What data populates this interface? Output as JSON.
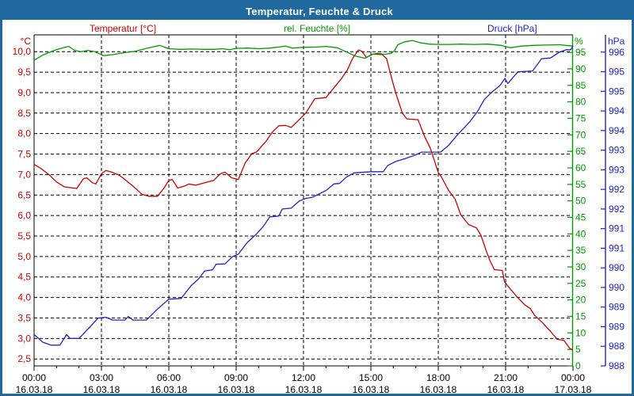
{
  "window": {
    "title": "Temperatur, Feuchte & Druck"
  },
  "legend": {
    "temperature": "Temperatur [°C]",
    "humidity": "rel. Feuchte [%]",
    "pressure": "Druck [hPa]"
  },
  "axis_units": {
    "temperature": "°C",
    "humidity": "%",
    "pressure": "hPa"
  },
  "colors": {
    "frame_and_titlebar": "#1F699F",
    "title_text": "#FFFFFF",
    "temperature": "#CC0000",
    "humidity": "#009900",
    "pressure": "#2222CC",
    "grid": "#000000",
    "x_labels": "#000000"
  },
  "chart_data": {
    "type": "line",
    "title": "Temperatur, Feuchte & Druck",
    "grid": "dashed black, horizontal at 0.5 °C steps, vertical at 3 h steps",
    "legend_position": "top row, one colored label per series",
    "x_axis": {
      "range_hours": [
        0,
        24
      ],
      "minor_tick_step_hours": 1,
      "ticks": [
        {
          "h": 0,
          "time": "00:00",
          "date": "16.03.18"
        },
        {
          "h": 3,
          "time": "03:00",
          "date": "16.03.18"
        },
        {
          "h": 6,
          "time": "06:00",
          "date": "16.03.18"
        },
        {
          "h": 9,
          "time": "09:00",
          "date": "16.03.18"
        },
        {
          "h": 12,
          "time": "12:00",
          "date": "16.03.18"
        },
        {
          "h": 15,
          "time": "15:00",
          "date": "16.03.18"
        },
        {
          "h": 18,
          "time": "18:00",
          "date": "16.03.18"
        },
        {
          "h": 21,
          "time": "21:00",
          "date": "16.03.18"
        },
        {
          "h": 24,
          "time": "00:00",
          "date": "17.03.18"
        }
      ]
    },
    "axes": {
      "temperature": {
        "unit": "°C",
        "side": "left",
        "color": "#CC0000",
        "range": [
          2.33,
          10.41
        ],
        "tick_values": [
          10.0,
          9.5,
          9.0,
          8.5,
          8.0,
          7.5,
          7.0,
          6.5,
          6.0,
          5.5,
          5.0,
          4.5,
          4.0,
          3.5,
          3.0,
          2.5
        ],
        "tick_labels": [
          "10,0",
          "9,5",
          "9,0",
          "8,5",
          "8,0",
          "7,5",
          "7,0",
          "6,5",
          "6,0",
          "5,5",
          "5,0",
          "4,5",
          "4,0",
          "3,5",
          "3,0",
          "2,5"
        ]
      },
      "humidity": {
        "unit": "%",
        "side": "right-inner",
        "color": "#009900",
        "range": [
          0,
          100.3
        ],
        "tick_values": [
          95,
          90,
          85,
          80,
          75,
          70,
          65,
          60,
          55,
          50,
          45,
          40,
          35,
          30,
          25,
          20,
          15,
          10,
          5,
          0
        ],
        "tick_labels": [
          "95",
          "90",
          "85",
          "80",
          "75",
          "70",
          "65",
          "60",
          "55",
          "50",
          "45",
          "40",
          "35",
          "30",
          "25",
          "20",
          "15",
          "10",
          "5",
          "0"
        ]
      },
      "pressure": {
        "unit": "hPa",
        "side": "right-outer",
        "color": "#2222CC",
        "range": [
          988,
          996.44
        ],
        "tick_values": [
          996,
          995.5,
          995,
          994.5,
          994,
          993.5,
          993,
          992.5,
          992,
          991.5,
          991,
          990.5,
          990,
          989.5,
          989,
          988.5,
          988
        ],
        "tick_labels": [
          "996",
          "995",
          "995",
          "994",
          "994",
          "993",
          "993",
          "992",
          "992",
          "991",
          "991",
          "990",
          "990",
          "989",
          "989",
          "988",
          "988"
        ]
      }
    },
    "series": [
      {
        "name": "Temperatur",
        "axis": "temperature",
        "color": "#CC0000",
        "points": [
          [
            0,
            7.25
          ],
          [
            0.3,
            7.15
          ],
          [
            0.7,
            6.98
          ],
          [
            1.0,
            6.82
          ],
          [
            1.35,
            6.7
          ],
          [
            1.9,
            6.66
          ],
          [
            2.2,
            6.9
          ],
          [
            2.35,
            6.92
          ],
          [
            2.6,
            6.8
          ],
          [
            2.75,
            6.77
          ],
          [
            3.0,
            7.02
          ],
          [
            3.2,
            7.1
          ],
          [
            3.5,
            7.05
          ],
          [
            3.8,
            6.98
          ],
          [
            4.0,
            6.9
          ],
          [
            4.4,
            6.72
          ],
          [
            4.8,
            6.52
          ],
          [
            5.1,
            6.47
          ],
          [
            5.5,
            6.47
          ],
          [
            5.8,
            6.68
          ],
          [
            6.0,
            6.86
          ],
          [
            6.15,
            6.88
          ],
          [
            6.4,
            6.67
          ],
          [
            6.7,
            6.72
          ],
          [
            6.9,
            6.77
          ],
          [
            7.2,
            6.74
          ],
          [
            7.6,
            6.8
          ],
          [
            8.0,
            6.86
          ],
          [
            8.3,
            7.02
          ],
          [
            8.5,
            7.06
          ],
          [
            8.8,
            6.92
          ],
          [
            9.1,
            6.88
          ],
          [
            9.4,
            7.28
          ],
          [
            9.7,
            7.51
          ],
          [
            9.9,
            7.55
          ],
          [
            10.05,
            7.64
          ],
          [
            10.35,
            7.83
          ],
          [
            10.6,
            8.03
          ],
          [
            10.9,
            8.19
          ],
          [
            11.2,
            8.2
          ],
          [
            11.45,
            8.15
          ],
          [
            11.7,
            8.28
          ],
          [
            12.1,
            8.5
          ],
          [
            12.5,
            8.85
          ],
          [
            13.0,
            8.88
          ],
          [
            13.4,
            9.15
          ],
          [
            13.7,
            9.35
          ],
          [
            13.95,
            9.55
          ],
          [
            14.2,
            9.85
          ],
          [
            14.45,
            10.04
          ],
          [
            14.6,
            10.01
          ],
          [
            14.8,
            9.86
          ],
          [
            15.1,
            9.94
          ],
          [
            15.5,
            9.93
          ],
          [
            15.7,
            9.83
          ],
          [
            15.95,
            9.3
          ],
          [
            16.1,
            9.0
          ],
          [
            16.4,
            8.5
          ],
          [
            16.6,
            8.36
          ],
          [
            17.1,
            8.34
          ],
          [
            17.4,
            7.92
          ],
          [
            17.65,
            7.64
          ],
          [
            18.0,
            7.05
          ],
          [
            18.15,
            6.93
          ],
          [
            18.45,
            6.62
          ],
          [
            18.75,
            6.4
          ],
          [
            19.0,
            6.02
          ],
          [
            19.35,
            5.78
          ],
          [
            19.7,
            5.7
          ],
          [
            19.9,
            5.52
          ],
          [
            20.15,
            5.12
          ],
          [
            20.3,
            4.9
          ],
          [
            20.5,
            4.68
          ],
          [
            20.85,
            4.66
          ],
          [
            20.95,
            4.38
          ],
          [
            21.2,
            4.21
          ],
          [
            21.5,
            4.02
          ],
          [
            21.85,
            3.82
          ],
          [
            22.1,
            3.73
          ],
          [
            22.3,
            3.56
          ],
          [
            22.65,
            3.38
          ],
          [
            23.0,
            3.17
          ],
          [
            23.3,
            2.98
          ],
          [
            23.6,
            2.95
          ],
          [
            23.85,
            2.76
          ],
          [
            24,
            2.72
          ]
        ]
      },
      {
        "name": "rel. Feuchte",
        "axis": "humidity",
        "color": "#009900",
        "points": [
          [
            0,
            92.6
          ],
          [
            0.4,
            94.2
          ],
          [
            0.9,
            95.6
          ],
          [
            1.3,
            96.4
          ],
          [
            1.55,
            96.8
          ],
          [
            1.8,
            95.6
          ],
          [
            2.1,
            95.2
          ],
          [
            2.4,
            95.6
          ],
          [
            2.7,
            95.2
          ],
          [
            3.1,
            94.0
          ],
          [
            3.5,
            94.3
          ],
          [
            4.0,
            94.9
          ],
          [
            4.5,
            95.3
          ],
          [
            5.0,
            96.2
          ],
          [
            5.6,
            97.1
          ],
          [
            6.0,
            96.1
          ],
          [
            6.5,
            95.9
          ],
          [
            7.0,
            96.0
          ],
          [
            7.5,
            95.9
          ],
          [
            8.0,
            95.9
          ],
          [
            8.4,
            96.1
          ],
          [
            8.7,
            95.8
          ],
          [
            9.0,
            96.2
          ],
          [
            9.5,
            96.3
          ],
          [
            10.0,
            96.1
          ],
          [
            10.5,
            96.3
          ],
          [
            11.0,
            96.7
          ],
          [
            11.2,
            96.9
          ],
          [
            11.5,
            96.3
          ],
          [
            12.0,
            96.5
          ],
          [
            12.6,
            96.6
          ],
          [
            13.0,
            96.8
          ],
          [
            13.5,
            96.4
          ],
          [
            13.9,
            95.2
          ],
          [
            14.3,
            93.9
          ],
          [
            14.75,
            93.2
          ],
          [
            15.05,
            94.4
          ],
          [
            15.3,
            94.7
          ],
          [
            15.6,
            94.4
          ],
          [
            15.9,
            94.7
          ],
          [
            16.05,
            95.5
          ],
          [
            16.2,
            97.3
          ],
          [
            16.5,
            98.2
          ],
          [
            16.85,
            98.6
          ],
          [
            17.2,
            97.9
          ],
          [
            17.6,
            97.5
          ],
          [
            18.0,
            97.4
          ],
          [
            18.5,
            97.4
          ],
          [
            19.0,
            97.5
          ],
          [
            19.6,
            97.4
          ],
          [
            20.2,
            97.5
          ],
          [
            20.8,
            97.1
          ],
          [
            21.2,
            96.4
          ],
          [
            21.7,
            96.9
          ],
          [
            22.2,
            97.1
          ],
          [
            22.8,
            97.2
          ],
          [
            23.4,
            97.3
          ],
          [
            24,
            96.9
          ]
        ]
      },
      {
        "name": "Druck",
        "axis": "pressure",
        "color": "#2222CC",
        "points": [
          [
            0,
            988.8
          ],
          [
            0.4,
            988.6
          ],
          [
            0.75,
            988.53
          ],
          [
            1.15,
            988.53
          ],
          [
            1.45,
            988.8
          ],
          [
            1.6,
            988.7
          ],
          [
            2.0,
            988.7
          ],
          [
            2.5,
            989.0
          ],
          [
            2.85,
            989.22
          ],
          [
            3.2,
            989.24
          ],
          [
            3.5,
            989.17
          ],
          [
            4.05,
            989.17
          ],
          [
            4.2,
            989.26
          ],
          [
            4.4,
            989.17
          ],
          [
            5.0,
            989.17
          ],
          [
            5.5,
            989.45
          ],
          [
            6.0,
            989.7
          ],
          [
            6.55,
            989.72
          ],
          [
            7.0,
            990.05
          ],
          [
            7.3,
            990.2
          ],
          [
            7.6,
            990.42
          ],
          [
            7.95,
            990.45
          ],
          [
            8.1,
            990.59
          ],
          [
            8.5,
            990.6
          ],
          [
            8.85,
            990.79
          ],
          [
            9.1,
            990.85
          ],
          [
            9.5,
            991.15
          ],
          [
            9.9,
            991.36
          ],
          [
            10.2,
            991.55
          ],
          [
            10.5,
            991.8
          ],
          [
            10.9,
            991.82
          ],
          [
            11.05,
            992.0
          ],
          [
            11.45,
            992.02
          ],
          [
            11.8,
            992.2
          ],
          [
            12.1,
            992.27
          ],
          [
            12.4,
            992.3
          ],
          [
            13.0,
            992.47
          ],
          [
            13.35,
            992.64
          ],
          [
            13.6,
            992.65
          ],
          [
            13.9,
            992.81
          ],
          [
            14.25,
            992.92
          ],
          [
            15.0,
            992.95
          ],
          [
            15.55,
            992.95
          ],
          [
            15.75,
            993.11
          ],
          [
            16.1,
            993.21
          ],
          [
            16.5,
            993.28
          ],
          [
            17.0,
            993.38
          ],
          [
            17.25,
            993.45
          ],
          [
            18.1,
            993.45
          ],
          [
            18.45,
            993.62
          ],
          [
            18.9,
            993.92
          ],
          [
            19.4,
            994.22
          ],
          [
            19.75,
            994.49
          ],
          [
            20.05,
            994.79
          ],
          [
            20.35,
            994.96
          ],
          [
            20.75,
            995.15
          ],
          [
            20.97,
            995.33
          ],
          [
            21.1,
            995.2
          ],
          [
            21.55,
            995.5
          ],
          [
            22.2,
            995.52
          ],
          [
            22.6,
            995.83
          ],
          [
            23.0,
            995.85
          ],
          [
            23.4,
            996.0
          ],
          [
            23.7,
            996.06
          ],
          [
            23.9,
            996.06
          ],
          [
            24,
            996.16
          ]
        ]
      }
    ]
  }
}
